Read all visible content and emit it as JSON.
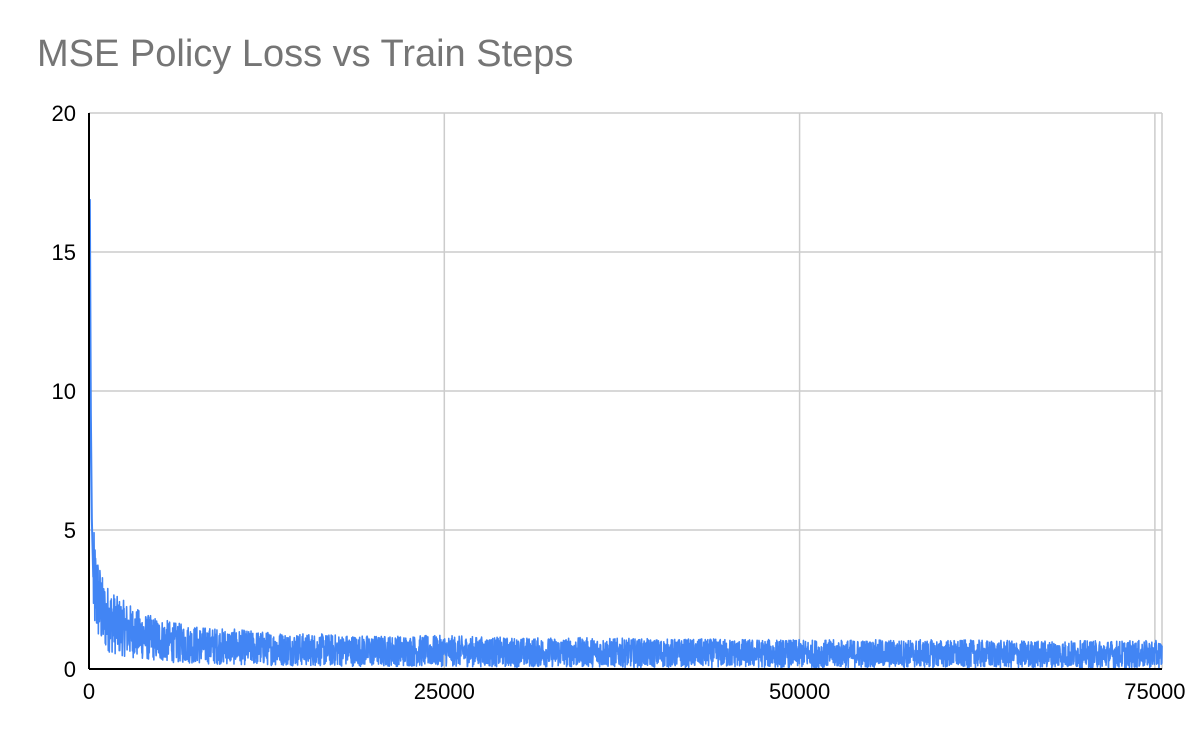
{
  "chart_data": {
    "type": "line",
    "title": "MSE Policy Loss vs Train Steps",
    "xlabel": "",
    "ylabel": "",
    "xlim": [
      0,
      75500
    ],
    "ylim": [
      0,
      20
    ],
    "x_ticks": [
      0,
      25000,
      50000,
      75000
    ],
    "y_ticks": [
      0,
      5,
      10,
      15,
      20
    ],
    "x_tick_labels": [
      "0",
      "25000",
      "50000",
      "75000"
    ],
    "y_tick_labels": [
      "0",
      "5",
      "10",
      "15",
      "20"
    ],
    "grid": true,
    "legend": "none",
    "series": [
      {
        "color": "#4285f4",
        "points": [
          {
            "x": 0,
            "y": 3.5
          },
          {
            "x": 60,
            "y": 16.9
          },
          {
            "x": 130,
            "y": 9.2
          },
          {
            "x": 200,
            "y": 5.4
          },
          {
            "x": 300,
            "y": 3.3
          },
          {
            "x": 500,
            "y": 2.9
          },
          {
            "x": 800,
            "y": 2.4
          },
          {
            "x": 1000,
            "y": 2.1
          },
          {
            "x": 1500,
            "y": 1.9
          },
          {
            "x": 2000,
            "y": 1.7
          },
          {
            "x": 3000,
            "y": 1.5
          },
          {
            "x": 4000,
            "y": 1.3
          },
          {
            "x": 5000,
            "y": 1.2
          },
          {
            "x": 6000,
            "y": 1.1
          },
          {
            "x": 8000,
            "y": 1.0
          },
          {
            "x": 10000,
            "y": 0.95
          },
          {
            "x": 12000,
            "y": 0.9
          },
          {
            "x": 15000,
            "y": 0.85
          },
          {
            "x": 20000,
            "y": 0.8
          },
          {
            "x": 25000,
            "y": 0.8
          },
          {
            "x": 30000,
            "y": 0.75
          },
          {
            "x": 35000,
            "y": 0.75
          },
          {
            "x": 40000,
            "y": 0.72
          },
          {
            "x": 45000,
            "y": 0.72
          },
          {
            "x": 50000,
            "y": 0.7
          },
          {
            "x": 55000,
            "y": 0.7
          },
          {
            "x": 60000,
            "y": 0.7
          },
          {
            "x": 65000,
            "y": 0.68
          },
          {
            "x": 70000,
            "y": 0.68
          },
          {
            "x": 75500,
            "y": 0.68
          }
        ]
      }
    ]
  }
}
